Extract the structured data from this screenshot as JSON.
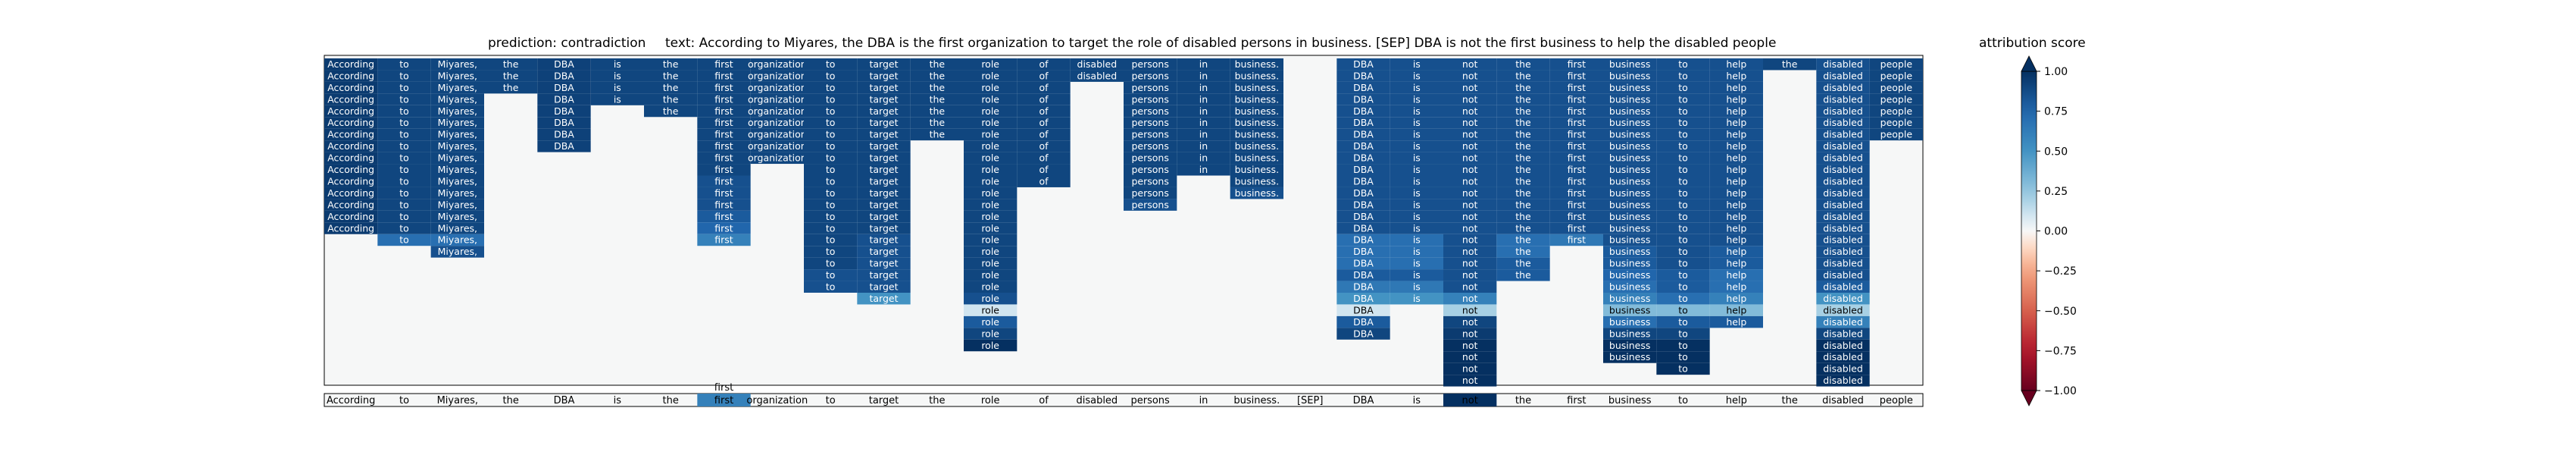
{
  "chart_data": {
    "type": "heatmap",
    "title_prediction": "prediction:  contradiction",
    "title_text": "text:  According to Miyares, the DBA is the first organization to target the role of disabled persons in business. [SEP] DBA is not the first business to help the disabled people",
    "colorbar_label": "attribution score",
    "colorbar_ticks": [
      "1.00",
      "0.75",
      "0.50",
      "0.25",
      "0.00",
      "−0.25",
      "−0.50",
      "−0.75",
      "−1.00"
    ],
    "colorbar_range": [
      -1,
      1
    ],
    "colormap": "RdBu",
    "n_rows": 28,
    "tokens": [
      "According",
      "to",
      "Miyares,",
      "the",
      "DBA",
      "is",
      "the",
      "first",
      "organization",
      "to",
      "target",
      "the",
      "role",
      "of",
      "disabled",
      "persons",
      "in",
      "business.",
      "[SEP]",
      "DBA",
      "is",
      "not",
      "the",
      "first",
      "business",
      "to",
      "help",
      "the",
      "disabled",
      "people"
    ],
    "highlighted_token": "not",
    "annotation_above_token": "first",
    "columns": [
      {
        "token": "According",
        "rows": 15,
        "scores": [
          0.95,
          0.95,
          0.95,
          0.95,
          0.95,
          0.95,
          0.95,
          0.95,
          0.95,
          0.95,
          0.95,
          0.95,
          0.95,
          0.95,
          0.95
        ]
      },
      {
        "token": "to",
        "rows": 16,
        "scores": [
          0.9,
          0.9,
          0.9,
          0.9,
          0.9,
          0.9,
          0.9,
          0.9,
          0.9,
          0.9,
          0.9,
          0.9,
          0.9,
          0.9,
          0.9,
          0.7
        ]
      },
      {
        "token": "Miyares,",
        "rows": 17,
        "scores": [
          0.9,
          0.9,
          0.9,
          0.9,
          0.9,
          0.9,
          0.9,
          0.9,
          0.9,
          0.9,
          0.9,
          0.9,
          0.9,
          0.9,
          0.9,
          0.7,
          0.85
        ]
      },
      {
        "token": "the",
        "rows": 3,
        "scores": [
          0.9,
          0.9,
          0.9
        ]
      },
      {
        "token": "DBA",
        "rows": 8,
        "scores": [
          0.92,
          0.92,
          0.92,
          0.92,
          0.92,
          0.92,
          0.92,
          0.92
        ]
      },
      {
        "token": "is",
        "rows": 4,
        "scores": [
          0.9,
          0.9,
          0.9,
          0.9
        ]
      },
      {
        "token": "the",
        "rows": 5,
        "scores": [
          0.9,
          0.9,
          0.9,
          0.9,
          0.9
        ]
      },
      {
        "token": "first",
        "rows": 16,
        "scores": [
          0.9,
          0.9,
          0.9,
          0.9,
          0.9,
          0.9,
          0.9,
          0.9,
          0.9,
          0.9,
          0.85,
          0.85,
          0.85,
          0.8,
          0.75,
          0.6
        ]
      },
      {
        "token": "organization",
        "rows": 9,
        "scores": [
          0.9,
          0.9,
          0.9,
          0.9,
          0.9,
          0.9,
          0.9,
          0.9,
          0.9
        ]
      },
      {
        "token": "to",
        "rows": 20,
        "scores": [
          0.9,
          0.9,
          0.9,
          0.9,
          0.9,
          0.9,
          0.9,
          0.9,
          0.9,
          0.9,
          0.9,
          0.9,
          0.9,
          0.9,
          0.9,
          0.9,
          0.9,
          0.9,
          0.85,
          0.85
        ]
      },
      {
        "token": "target",
        "rows": 21,
        "scores": [
          0.9,
          0.9,
          0.9,
          0.9,
          0.9,
          0.9,
          0.9,
          0.9,
          0.9,
          0.9,
          0.9,
          0.9,
          0.9,
          0.9,
          0.9,
          0.85,
          0.85,
          0.85,
          0.85,
          0.85,
          0.5
        ]
      },
      {
        "token": "the",
        "rows": 7,
        "scores": [
          0.9,
          0.9,
          0.9,
          0.9,
          0.9,
          0.9,
          0.9
        ]
      },
      {
        "token": "role",
        "rows": 25,
        "scores": [
          0.9,
          0.9,
          0.9,
          0.9,
          0.9,
          0.9,
          0.9,
          0.9,
          0.9,
          0.9,
          0.9,
          0.9,
          0.9,
          0.9,
          0.9,
          0.9,
          0.9,
          0.9,
          0.9,
          0.9,
          0.85,
          0.1,
          0.8,
          0.9,
          1.0
        ]
      },
      {
        "token": "of",
        "rows": 11,
        "scores": [
          0.9,
          0.9,
          0.9,
          0.9,
          0.9,
          0.9,
          0.9,
          0.9,
          0.9,
          0.9,
          0.9
        ]
      },
      {
        "token": "disabled",
        "rows": 2,
        "scores": [
          0.9,
          0.9
        ]
      },
      {
        "token": "persons",
        "rows": 13,
        "scores": [
          0.9,
          0.9,
          0.9,
          0.9,
          0.9,
          0.9,
          0.9,
          0.9,
          0.9,
          0.9,
          0.9,
          0.9,
          0.85
        ]
      },
      {
        "token": "in",
        "rows": 10,
        "scores": [
          0.9,
          0.9,
          0.9,
          0.9,
          0.9,
          0.9,
          0.9,
          0.9,
          0.9,
          0.9
        ]
      },
      {
        "token": "business.",
        "rows": 12,
        "scores": [
          0.9,
          0.9,
          0.9,
          0.9,
          0.9,
          0.9,
          0.9,
          0.9,
          0.9,
          0.9,
          0.9,
          0.85
        ]
      },
      {
        "token": "[SEP]",
        "rows": 0,
        "scores": []
      },
      {
        "token": "DBA",
        "rows": 24,
        "scores": [
          0.85,
          0.85,
          0.85,
          0.85,
          0.85,
          0.85,
          0.85,
          0.85,
          0.85,
          0.85,
          0.85,
          0.85,
          0.85,
          0.85,
          0.85,
          0.7,
          0.7,
          0.7,
          0.8,
          0.65,
          0.5,
          0.1,
          0.8,
          0.9
        ]
      },
      {
        "token": "is",
        "rows": 21,
        "scores": [
          0.85,
          0.85,
          0.85,
          0.85,
          0.85,
          0.85,
          0.85,
          0.85,
          0.85,
          0.85,
          0.85,
          0.85,
          0.85,
          0.85,
          0.85,
          0.7,
          0.7,
          0.7,
          0.8,
          0.65,
          0.5
        ]
      },
      {
        "token": "not",
        "rows": 28,
        "scores": [
          0.85,
          0.85,
          0.85,
          0.85,
          0.85,
          0.85,
          0.85,
          0.85,
          0.85,
          0.85,
          0.85,
          0.85,
          0.85,
          0.85,
          0.85,
          0.85,
          0.85,
          0.85,
          0.85,
          0.85,
          0.6,
          0.2,
          0.9,
          0.95,
          1.0,
          1.0,
          1.0,
          1.0
        ]
      },
      {
        "token": "the",
        "rows": 19,
        "scores": [
          0.85,
          0.85,
          0.85,
          0.85,
          0.85,
          0.85,
          0.85,
          0.85,
          0.85,
          0.85,
          0.85,
          0.85,
          0.85,
          0.85,
          0.85,
          0.7,
          0.7,
          0.8,
          0.8
        ]
      },
      {
        "token": "first",
        "rows": 16,
        "scores": [
          0.85,
          0.85,
          0.85,
          0.85,
          0.85,
          0.85,
          0.85,
          0.85,
          0.85,
          0.85,
          0.85,
          0.85,
          0.85,
          0.85,
          0.85,
          0.65
        ]
      },
      {
        "token": "business",
        "rows": 26,
        "scores": [
          0.85,
          0.85,
          0.85,
          0.85,
          0.85,
          0.85,
          0.85,
          0.85,
          0.85,
          0.85,
          0.85,
          0.85,
          0.85,
          0.85,
          0.85,
          0.85,
          0.8,
          0.8,
          0.75,
          0.7,
          0.6,
          0.3,
          0.7,
          0.9,
          1.0,
          1.0
        ]
      },
      {
        "token": "to",
        "rows": 27,
        "scores": [
          0.85,
          0.85,
          0.85,
          0.85,
          0.85,
          0.85,
          0.85,
          0.85,
          0.85,
          0.85,
          0.85,
          0.85,
          0.85,
          0.85,
          0.85,
          0.85,
          0.85,
          0.85,
          0.8,
          0.8,
          0.7,
          0.3,
          0.8,
          0.9,
          1.0,
          1.0,
          1.0
        ]
      },
      {
        "token": "help",
        "rows": 23,
        "scores": [
          0.85,
          0.85,
          0.85,
          0.85,
          0.85,
          0.85,
          0.85,
          0.85,
          0.85,
          0.85,
          0.85,
          0.85,
          0.85,
          0.85,
          0.85,
          0.85,
          0.8,
          0.8,
          0.7,
          0.7,
          0.6,
          0.3,
          0.8
        ]
      },
      {
        "token": "the",
        "rows": 1,
        "scores": [
          0.9
        ]
      },
      {
        "token": "disabled",
        "rows": 28,
        "scores": [
          0.85,
          0.85,
          0.85,
          0.85,
          0.85,
          0.85,
          0.85,
          0.85,
          0.85,
          0.85,
          0.85,
          0.85,
          0.85,
          0.85,
          0.85,
          0.85,
          0.85,
          0.85,
          0.85,
          0.8,
          0.5,
          0.2,
          0.6,
          0.9,
          1.0,
          1.0,
          1.0,
          1.0
        ]
      },
      {
        "token": "people",
        "rows": 7,
        "scores": [
          0.9,
          0.9,
          0.9,
          0.9,
          0.9,
          0.9,
          0.9
        ]
      }
    ]
  }
}
